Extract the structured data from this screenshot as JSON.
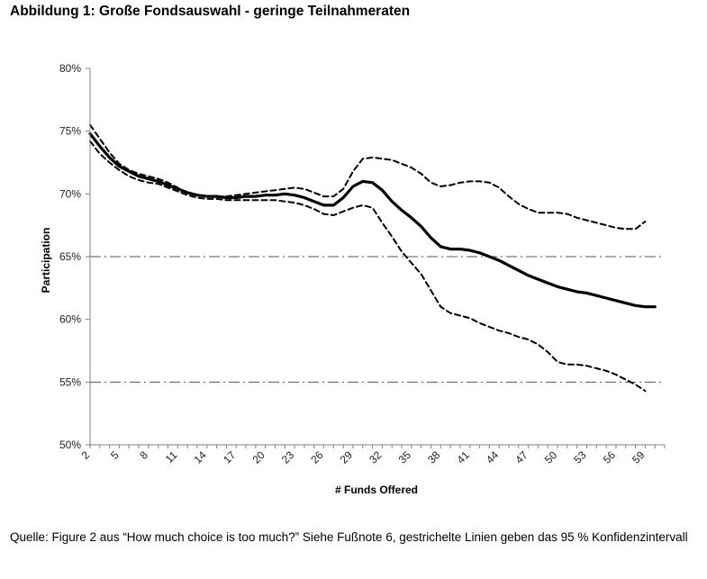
{
  "figure": {
    "title": "Abbildung 1: Große Fondsauswahl - geringe Teilnahmeraten",
    "caption": "Quelle: Figure 2 aus “How much choice is too much?” Siehe Fußnote 6, gestrichelte Linien geben das 95 % Konfidenzintervall"
  },
  "chart_data": {
    "type": "line",
    "xlabel": "# Funds Offered",
    "ylabel": "Participation",
    "xlim": [
      2,
      61
    ],
    "ylim": [
      50,
      80
    ],
    "x_ticks": [
      2,
      5,
      8,
      11,
      14,
      17,
      20,
      23,
      26,
      29,
      32,
      35,
      38,
      41,
      44,
      47,
      50,
      53,
      56,
      59
    ],
    "y_ticks": [
      50,
      55,
      60,
      65,
      70,
      75,
      80
    ],
    "y_tick_labels": [
      "50%",
      "55%",
      "60%",
      "65%",
      "70%",
      "75%",
      "80%"
    ],
    "reference_lines": [
      65,
      55
    ],
    "grid": false,
    "legend": "none",
    "series": [
      {
        "style": "solid-thick",
        "color": "#000000",
        "x": [
          2,
          3,
          4,
          5,
          6,
          7,
          8,
          9,
          10,
          11,
          12,
          13,
          14,
          15,
          16,
          17,
          18,
          19,
          20,
          21,
          22,
          23,
          24,
          25,
          26,
          27,
          28,
          29,
          30,
          31,
          32,
          33,
          34,
          35,
          36,
          37,
          38,
          39,
          40,
          41,
          42,
          43,
          44,
          45,
          46,
          47,
          48,
          49,
          50,
          51,
          52,
          53,
          54,
          55,
          56,
          57,
          58,
          59,
          60
        ],
        "y": [
          74.8,
          73.8,
          72.9,
          72.2,
          71.8,
          71.4,
          71.2,
          71.0,
          70.7,
          70.4,
          70.1,
          69.9,
          69.8,
          69.8,
          69.7,
          69.7,
          69.8,
          69.8,
          69.9,
          69.9,
          70.0,
          69.9,
          69.7,
          69.4,
          69.1,
          69.1,
          69.7,
          70.6,
          71.0,
          70.9,
          70.3,
          69.4,
          68.7,
          68.1,
          67.4,
          66.5,
          65.8,
          65.6,
          65.6,
          65.5,
          65.3,
          65.0,
          64.7,
          64.3,
          63.9,
          63.5,
          63.2,
          62.9,
          62.6,
          62.4,
          62.2,
          62.1,
          61.9,
          61.7,
          61.5,
          61.3,
          61.1,
          61.0,
          61.0
        ]
      },
      {
        "style": "dashed",
        "color": "#000000",
        "x": [
          2,
          3,
          4,
          5,
          6,
          7,
          8,
          9,
          10,
          11,
          12,
          13,
          14,
          15,
          16,
          17,
          18,
          19,
          20,
          21,
          22,
          23,
          24,
          25,
          26,
          27,
          28,
          29,
          30,
          31,
          32,
          33,
          34,
          35,
          36,
          37,
          38,
          39,
          40,
          41,
          42,
          43,
          44,
          45,
          46,
          47,
          48,
          49,
          50,
          51,
          52,
          53,
          54,
          55,
          56,
          57,
          58,
          59
        ],
        "y": [
          75.5,
          74.4,
          73.3,
          72.4,
          71.9,
          71.6,
          71.4,
          71.2,
          70.9,
          70.5,
          70.1,
          69.9,
          69.8,
          69.8,
          69.8,
          69.9,
          70.0,
          70.1,
          70.2,
          70.3,
          70.4,
          70.5,
          70.4,
          70.1,
          69.8,
          69.8,
          70.4,
          71.8,
          72.8,
          72.9,
          72.8,
          72.7,
          72.4,
          72.1,
          71.6,
          70.9,
          70.6,
          70.7,
          70.9,
          71.0,
          71.0,
          70.9,
          70.5,
          69.8,
          69.2,
          68.8,
          68.5,
          68.5,
          68.5,
          68.4,
          68.1,
          67.9,
          67.7,
          67.5,
          67.3,
          67.2,
          67.2,
          67.8
        ]
      },
      {
        "style": "dashed",
        "color": "#000000",
        "x": [
          2,
          3,
          4,
          5,
          6,
          7,
          8,
          9,
          10,
          11,
          12,
          13,
          14,
          15,
          16,
          17,
          18,
          19,
          20,
          21,
          22,
          23,
          24,
          25,
          26,
          27,
          28,
          29,
          30,
          31,
          32,
          33,
          34,
          35,
          36,
          37,
          38,
          39,
          40,
          41,
          42,
          43,
          44,
          45,
          46,
          47,
          48,
          49,
          50,
          51,
          52,
          53,
          54,
          55,
          56,
          57,
          58,
          59
        ],
        "y": [
          74.2,
          73.2,
          72.5,
          71.9,
          71.4,
          71.1,
          70.9,
          70.8,
          70.5,
          70.2,
          69.9,
          69.7,
          69.6,
          69.6,
          69.5,
          69.5,
          69.5,
          69.5,
          69.5,
          69.5,
          69.4,
          69.3,
          69.1,
          68.8,
          68.4,
          68.3,
          68.6,
          68.9,
          69.1,
          68.9,
          67.7,
          66.6,
          65.4,
          64.5,
          63.6,
          62.3,
          61.0,
          60.5,
          60.3,
          60.1,
          59.7,
          59.4,
          59.1,
          58.9,
          58.6,
          58.4,
          58.0,
          57.4,
          56.6,
          56.4,
          56.4,
          56.3,
          56.1,
          55.9,
          55.6,
          55.2,
          54.8,
          54.3
        ]
      }
    ]
  }
}
